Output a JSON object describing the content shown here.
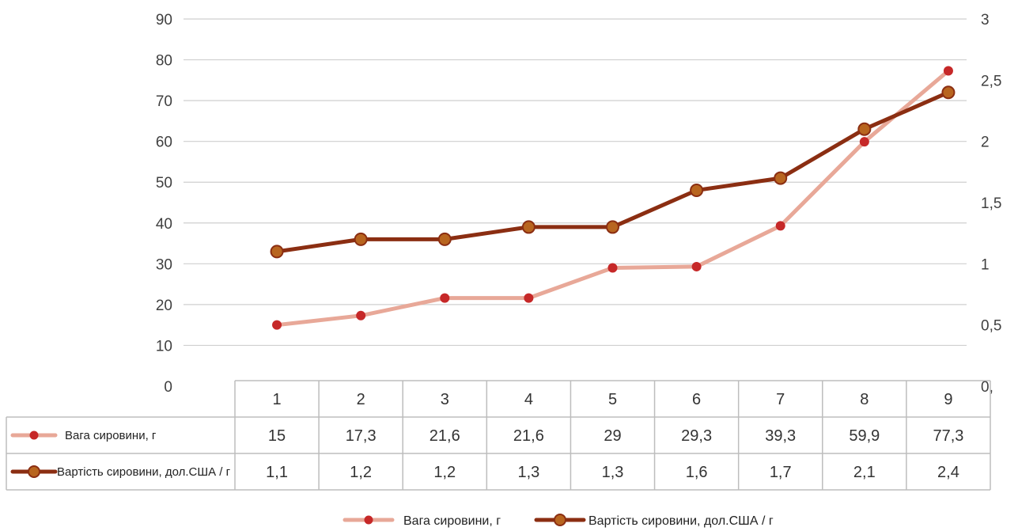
{
  "chart_data": {
    "type": "line",
    "categories": [
      "1",
      "2",
      "3",
      "4",
      "5",
      "6",
      "7",
      "8",
      "9"
    ],
    "series": [
      {
        "name": "Вага сировини, г",
        "axis": "left",
        "values": [
          15,
          17.3,
          21.6,
          21.6,
          29,
          29.3,
          39.3,
          59.9,
          77.3
        ],
        "display_values": [
          "15",
          "17,3",
          "21,6",
          "21,6",
          "29",
          "29,3",
          "39,3",
          "59,9",
          "77,3"
        ],
        "color": "#e8a898",
        "marker_color": "#c62828"
      },
      {
        "name": "Вартість сировини, дол.США / г",
        "axis": "right",
        "values": [
          1.1,
          1.2,
          1.2,
          1.3,
          1.3,
          1.6,
          1.7,
          2.1,
          2.4
        ],
        "display_values": [
          "1,1",
          "1,2",
          "1,2",
          "1,3",
          "1,3",
          "1,6",
          "1,7",
          "2,1",
          "2,4"
        ],
        "color": "#8b2e12",
        "marker_color": "#b8651f"
      }
    ],
    "y_left": {
      "min": 0,
      "max": 90,
      "ticks": [
        "0",
        "10",
        "20",
        "30",
        "40",
        "50",
        "60",
        "70",
        "80",
        "90"
      ]
    },
    "y_right": {
      "min": 0,
      "max": 3,
      "ticks": [
        "0,",
        "0,5",
        "1",
        "1,5",
        "2",
        "2,5",
        "3"
      ]
    },
    "grid": true,
    "legend_position": "bottom",
    "data_table": true,
    "table_row_labels": [
      "Вага сировини, г",
      "Вартість сировини, дол.США / г"
    ]
  }
}
